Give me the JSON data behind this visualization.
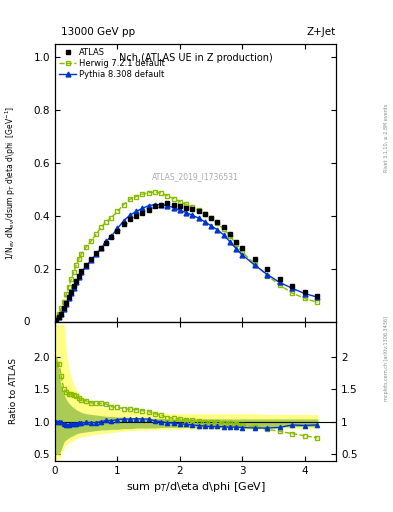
{
  "title_top": "13000 GeV pp",
  "title_right": "Z+Jet",
  "plot_title": "Nch (ATLAS UE in Z production)",
  "xlabel": "sum p$_{T}$/d\\eta d\\phi [GeV]",
  "ylabel_main": "1/N$_{ev}$ dN$_{ev}$/dsum p$_{T}$ d\\eta d\\phi  [GeV$^{-1}$]",
  "ylabel_ratio": "Ratio to ATLAS",
  "watermark": "ATLAS_2019_I1736531",
  "rivet_label": "Rivet 3.1.10, ≥ 2.8M events",
  "mcplots_label": "mcplots.cern.ch [arXiv:1306.3436]",
  "xlim": [
    0,
    4.5
  ],
  "ylim_main": [
    0,
    1.05
  ],
  "ylim_ratio": [
    0.39,
    2.55
  ],
  "atlas_x": [
    0.02,
    0.06,
    0.1,
    0.14,
    0.18,
    0.22,
    0.26,
    0.3,
    0.34,
    0.38,
    0.42,
    0.5,
    0.58,
    0.66,
    0.74,
    0.82,
    0.9,
    1.0,
    1.1,
    1.2,
    1.3,
    1.4,
    1.5,
    1.6,
    1.7,
    1.8,
    1.9,
    2.0,
    2.1,
    2.2,
    2.3,
    2.4,
    2.5,
    2.6,
    2.7,
    2.8,
    2.9,
    3.0,
    3.2,
    3.4,
    3.6,
    3.8,
    4.0,
    4.2
  ],
  "atlas_y": [
    0.008,
    0.016,
    0.03,
    0.05,
    0.072,
    0.093,
    0.112,
    0.133,
    0.153,
    0.172,
    0.19,
    0.213,
    0.237,
    0.258,
    0.278,
    0.298,
    0.318,
    0.342,
    0.367,
    0.387,
    0.398,
    0.412,
    0.422,
    0.437,
    0.442,
    0.447,
    0.441,
    0.437,
    0.43,
    0.425,
    0.417,
    0.406,
    0.392,
    0.376,
    0.357,
    0.332,
    0.302,
    0.278,
    0.237,
    0.198,
    0.163,
    0.133,
    0.113,
    0.098
  ],
  "atlas_yerr_lo": [
    0.001,
    0.002,
    0.003,
    0.004,
    0.005,
    0.006,
    0.007,
    0.008,
    0.009,
    0.009,
    0.01,
    0.01,
    0.01,
    0.011,
    0.011,
    0.012,
    0.012,
    0.012,
    0.013,
    0.013,
    0.014,
    0.014,
    0.014,
    0.015,
    0.015,
    0.015,
    0.015,
    0.015,
    0.015,
    0.014,
    0.014,
    0.013,
    0.013,
    0.012,
    0.012,
    0.011,
    0.011,
    0.01,
    0.01,
    0.009,
    0.009,
    0.008,
    0.008,
    0.007
  ],
  "atlas_yerr_hi": [
    0.001,
    0.002,
    0.003,
    0.004,
    0.005,
    0.006,
    0.007,
    0.008,
    0.009,
    0.009,
    0.01,
    0.01,
    0.01,
    0.011,
    0.011,
    0.012,
    0.012,
    0.012,
    0.013,
    0.013,
    0.014,
    0.014,
    0.014,
    0.015,
    0.015,
    0.015,
    0.015,
    0.015,
    0.015,
    0.014,
    0.014,
    0.013,
    0.013,
    0.012,
    0.012,
    0.011,
    0.011,
    0.01,
    0.01,
    0.009,
    0.009,
    0.008,
    0.008,
    0.007
  ],
  "herwig_x": [
    0.02,
    0.06,
    0.1,
    0.14,
    0.18,
    0.22,
    0.26,
    0.3,
    0.34,
    0.38,
    0.42,
    0.5,
    0.58,
    0.66,
    0.74,
    0.82,
    0.9,
    1.0,
    1.1,
    1.2,
    1.3,
    1.4,
    1.5,
    1.6,
    1.7,
    1.8,
    1.9,
    2.0,
    2.1,
    2.2,
    2.3,
    2.4,
    2.5,
    2.6,
    2.7,
    2.8,
    2.9,
    3.0,
    3.2,
    3.4,
    3.6,
    3.8,
    4.0,
    4.2
  ],
  "herwig_y": [
    0.015,
    0.03,
    0.05,
    0.075,
    0.105,
    0.132,
    0.16,
    0.188,
    0.215,
    0.235,
    0.255,
    0.282,
    0.305,
    0.33,
    0.357,
    0.378,
    0.392,
    0.416,
    0.442,
    0.462,
    0.472,
    0.481,
    0.487,
    0.49,
    0.486,
    0.475,
    0.465,
    0.453,
    0.443,
    0.432,
    0.42,
    0.405,
    0.39,
    0.371,
    0.35,
    0.325,
    0.292,
    0.262,
    0.218,
    0.174,
    0.138,
    0.108,
    0.088,
    0.073
  ],
  "pythia_x": [
    0.02,
    0.06,
    0.1,
    0.14,
    0.18,
    0.22,
    0.26,
    0.3,
    0.34,
    0.38,
    0.42,
    0.5,
    0.58,
    0.66,
    0.74,
    0.82,
    0.9,
    1.0,
    1.1,
    1.2,
    1.3,
    1.4,
    1.5,
    1.6,
    1.7,
    1.8,
    1.9,
    2.0,
    2.1,
    2.2,
    2.3,
    2.4,
    2.5,
    2.6,
    2.7,
    2.8,
    2.9,
    3.0,
    3.2,
    3.4,
    3.6,
    3.8,
    4.0,
    4.2
  ],
  "pythia_y": [
    0.008,
    0.016,
    0.03,
    0.048,
    0.068,
    0.088,
    0.108,
    0.128,
    0.148,
    0.168,
    0.186,
    0.21,
    0.233,
    0.254,
    0.278,
    0.303,
    0.322,
    0.352,
    0.381,
    0.402,
    0.416,
    0.428,
    0.438,
    0.442,
    0.442,
    0.437,
    0.431,
    0.421,
    0.412,
    0.402,
    0.391,
    0.377,
    0.362,
    0.347,
    0.328,
    0.302,
    0.276,
    0.252,
    0.213,
    0.178,
    0.148,
    0.126,
    0.106,
    0.093
  ],
  "herwig_ratio": [
    1.9,
    1.9,
    1.7,
    1.5,
    1.46,
    1.42,
    1.43,
    1.41,
    1.4,
    1.37,
    1.34,
    1.32,
    1.29,
    1.28,
    1.28,
    1.27,
    1.23,
    1.22,
    1.2,
    1.19,
    1.185,
    1.167,
    1.154,
    1.121,
    1.099,
    1.062,
    1.053,
    1.037,
    1.03,
    1.016,
    1.007,
    0.997,
    0.995,
    0.986,
    0.98,
    0.978,
    0.967,
    0.942,
    0.92,
    0.879,
    0.847,
    0.812,
    0.779,
    0.745
  ],
  "pythia_ratio": [
    1.0,
    1.0,
    1.0,
    0.96,
    0.944,
    0.946,
    0.964,
    0.962,
    0.967,
    0.977,
    0.979,
    0.986,
    0.983,
    0.984,
    1.0,
    1.017,
    1.013,
    1.029,
    1.038,
    1.038,
    1.045,
    1.039,
    1.038,
    1.011,
    1.0,
    0.978,
    0.977,
    0.964,
    0.958,
    0.946,
    0.938,
    0.928,
    0.924,
    0.923,
    0.919,
    0.91,
    0.914,
    0.906,
    0.899,
    0.899,
    0.908,
    0.947,
    0.938,
    0.949
  ],
  "atlas_color": "#000000",
  "herwig_color": "#88bb00",
  "pythia_color": "#0033cc",
  "band_yellow": "#ffff88",
  "band_green": "#aacc55",
  "xticks": [
    0,
    1,
    2,
    3,
    4
  ],
  "yticks_main": [
    0.2,
    0.4,
    0.6,
    0.8,
    1.0
  ],
  "yticks_ratio": [
    0.5,
    1.0,
    1.5,
    2.0
  ],
  "ratio_band_lo": [
    0.4,
    0.4,
    0.5,
    0.6,
    0.65,
    0.68,
    0.7,
    0.72,
    0.74,
    0.76,
    0.77,
    0.78,
    0.8,
    0.81,
    0.82,
    0.83,
    0.84,
    0.85,
    0.86,
    0.87,
    0.87,
    0.88,
    0.88,
    0.88,
    0.89,
    0.89,
    0.89,
    0.89,
    0.89,
    0.89,
    0.89,
    0.89,
    0.89,
    0.89,
    0.89,
    0.89,
    0.89,
    0.89,
    0.89,
    0.9,
    0.9,
    0.9,
    0.9,
    0.9
  ],
  "ratio_band_hi": [
    2.5,
    2.5,
    2.5,
    2.5,
    2.0,
    1.8,
    1.65,
    1.55,
    1.48,
    1.42,
    1.38,
    1.32,
    1.27,
    1.25,
    1.22,
    1.2,
    1.19,
    1.18,
    1.16,
    1.15,
    1.14,
    1.13,
    1.13,
    1.12,
    1.12,
    1.11,
    1.11,
    1.11,
    1.11,
    1.11,
    1.11,
    1.11,
    1.11,
    1.11,
    1.11,
    1.11,
    1.11,
    1.11,
    1.11,
    1.1,
    1.1,
    1.1,
    1.1,
    1.1
  ],
  "ratio_inner_lo": [
    0.5,
    0.5,
    0.6,
    0.7,
    0.73,
    0.76,
    0.78,
    0.8,
    0.82,
    0.83,
    0.84,
    0.85,
    0.86,
    0.87,
    0.88,
    0.88,
    0.89,
    0.89,
    0.9,
    0.9,
    0.91,
    0.91,
    0.91,
    0.91,
    0.92,
    0.92,
    0.92,
    0.92,
    0.92,
    0.92,
    0.92,
    0.92,
    0.92,
    0.92,
    0.92,
    0.92,
    0.92,
    0.92,
    0.93,
    0.93,
    0.93,
    0.93,
    0.93,
    0.93
  ],
  "ratio_inner_hi": [
    2.0,
    1.7,
    1.5,
    1.4,
    1.32,
    1.27,
    1.23,
    1.2,
    1.17,
    1.15,
    1.13,
    1.11,
    1.1,
    1.09,
    1.08,
    1.07,
    1.07,
    1.06,
    1.06,
    1.05,
    1.05,
    1.04,
    1.04,
    1.04,
    1.04,
    1.03,
    1.03,
    1.03,
    1.03,
    1.03,
    1.03,
    1.03,
    1.03,
    1.03,
    1.03,
    1.03,
    1.03,
    1.03,
    1.03,
    1.03,
    1.03,
    1.03,
    1.03,
    1.03
  ]
}
